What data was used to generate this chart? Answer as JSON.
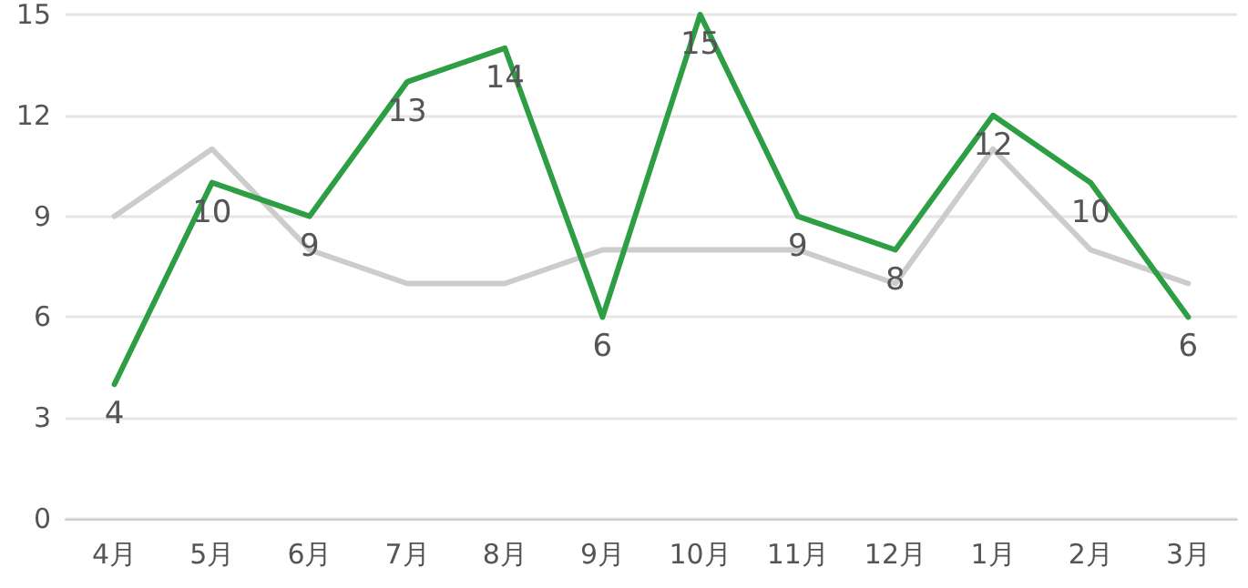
{
  "chart_data": {
    "type": "line",
    "categories": [
      "4月",
      "5月",
      "6月",
      "7月",
      "8月",
      "9月",
      "10月",
      "11月",
      "12月",
      "1月",
      "2月",
      "3月"
    ],
    "series": [
      {
        "color": "#cccccc",
        "values": [
          9,
          11,
          8,
          7,
          7,
          8,
          8,
          8,
          7,
          11,
          8,
          7
        ]
      },
      {
        "color": "#2e9e44",
        "values": [
          4,
          10,
          9,
          13,
          14,
          6,
          15,
          9,
          8,
          12,
          10,
          6
        ],
        "value_labels": [
          "4",
          "10",
          "9",
          "13",
          "14",
          "6",
          "15",
          "9",
          "8",
          "12",
          "10",
          "6"
        ]
      }
    ],
    "ylim": [
      0,
      15
    ],
    "yticks": [
      0,
      3,
      6,
      9,
      12,
      15
    ],
    "grid": "y",
    "marker": "none",
    "line_style": "solid"
  }
}
